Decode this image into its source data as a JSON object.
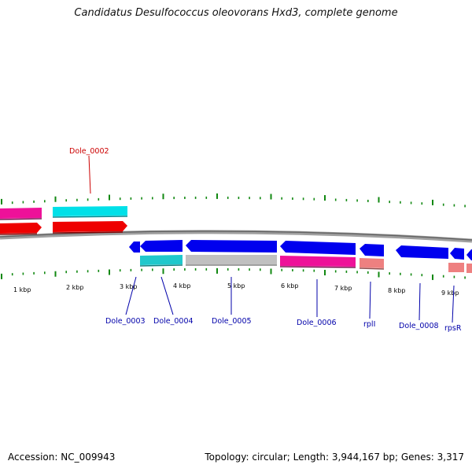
{
  "title": "Candidatus Desulfococcus oleovorans Hxd3, complete genome",
  "footer": {
    "accession": "Accession: NC_009943",
    "summary": "Topology: circular; Length: 3,944,167 bp; Genes: 3,317"
  },
  "colors": {
    "cds_forward": "#ee0000",
    "cds_reverse": "#0000ee",
    "label_forward": "#cc0000",
    "label_reverse": "#0000aa",
    "cyan": "#00e0e8",
    "magenta": "#ee1199",
    "gray": "#c0c0c0",
    "salmon": "#ee8080",
    "ticks": "#118811"
  },
  "scale_labels": [
    "1 kbp",
    "2 kbp",
    "3 kbp",
    "4 kbp",
    "5 kbp",
    "6 kbp",
    "7 kbp",
    "8 kbp",
    "9 kbp"
  ],
  "gene_labels": {
    "forward": [
      "Dole_0002"
    ],
    "reverse": [
      "Dole_0003",
      "Dole_0004",
      "Dole_0005",
      "Dole_0006",
      "rplI",
      "Dole_0008",
      "rpsR"
    ]
  }
}
